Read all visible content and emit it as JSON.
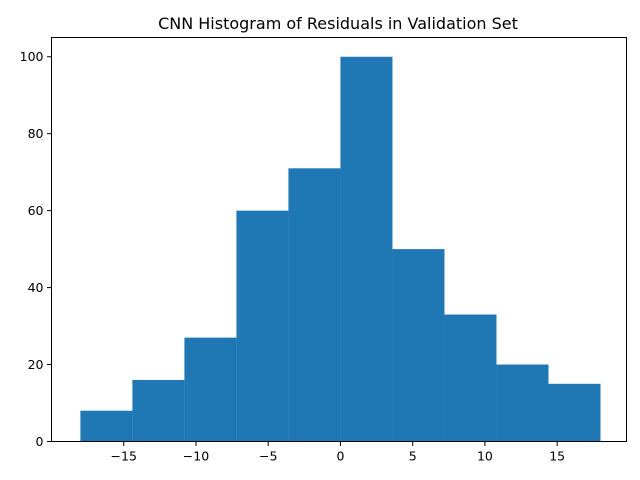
{
  "chart_data": {
    "type": "bar",
    "subtype": "histogram",
    "title": "CNN Histogram of Residuals in Validation Set",
    "xlabel": "",
    "ylabel": "",
    "bin_edges": [
      -18.0,
      -14.4,
      -10.8,
      -7.2,
      -3.6,
      0.0,
      3.6,
      7.2,
      10.8,
      14.4,
      18.0
    ],
    "values": [
      8,
      16,
      27,
      60,
      71,
      100,
      50,
      33,
      20,
      15
    ],
    "xlim": [
      -20.0,
      19.8
    ],
    "ylim": [
      0,
      105
    ],
    "xticks": [
      -15,
      -10,
      -5,
      0,
      5,
      10,
      15
    ],
    "xtick_labels": [
      "−15",
      "−10",
      "−5",
      "0",
      "5",
      "10",
      "15"
    ],
    "yticks": [
      0,
      20,
      40,
      60,
      80,
      100
    ],
    "ytick_labels": [
      "0",
      "20",
      "40",
      "60",
      "80",
      "100"
    ],
    "bar_color": "#1f77b4",
    "grid": false,
    "legend": "none"
  }
}
